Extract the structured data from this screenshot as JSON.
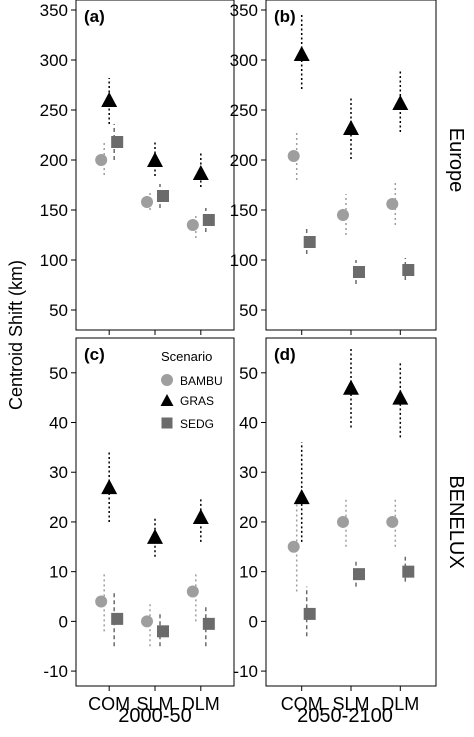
{
  "figure": {
    "ylabel": "Centroid Shift (km)",
    "row_labels": [
      "Europe",
      "BENELUX"
    ],
    "col_labels": [
      "2000-50",
      "2050-2100"
    ],
    "legend_title": "Scenario",
    "categories": [
      "COM",
      "SLM",
      "DLM"
    ],
    "series": [
      {
        "name": "BAMBU",
        "marker": "circle",
        "color": "#9e9e9e",
        "err_style": "dash-dot"
      },
      {
        "name": "GRAS",
        "marker": "triangle",
        "color": "#000000",
        "err_style": "dotted"
      },
      {
        "name": "SEDG",
        "marker": "square",
        "color": "#6b6b6b",
        "err_style": "dashed"
      }
    ]
  },
  "chart_data": [
    {
      "type": "scatter",
      "panel": "(a)",
      "row": "Europe",
      "column": "2000-50",
      "categories": [
        "COM",
        "SLM",
        "DLM"
      ],
      "ylim": [
        30,
        360
      ],
      "yticks": [
        50,
        100,
        150,
        200,
        250,
        300,
        350
      ],
      "series": [
        {
          "name": "BAMBU",
          "values": [
            200,
            158,
            135
          ],
          "lower": [
            185,
            150,
            122
          ],
          "upper": [
            220,
            168,
            145
          ]
        },
        {
          "name": "GRAS",
          "values": [
            260,
            200,
            187
          ],
          "lower": [
            236,
            184,
            173
          ],
          "upper": [
            282,
            218,
            207
          ]
        },
        {
          "name": "SEDG",
          "values": [
            218,
            164,
            140
          ],
          "lower": [
            200,
            152,
            128
          ],
          "upper": [
            236,
            176,
            152
          ]
        }
      ]
    },
    {
      "type": "scatter",
      "panel": "(b)",
      "row": "Europe",
      "column": "2050-2100",
      "categories": [
        "COM",
        "SLM",
        "DLM"
      ],
      "ylim": [
        30,
        360
      ],
      "yticks": [
        50,
        100,
        150,
        200,
        250,
        300,
        350
      ],
      "series": [
        {
          "name": "BAMBU",
          "values": [
            204,
            145,
            156
          ],
          "lower": [
            180,
            125,
            135
          ],
          "upper": [
            228,
            166,
            178
          ]
        },
        {
          "name": "GRAS",
          "values": [
            306,
            232,
            257
          ],
          "lower": [
            271,
            201,
            228
          ],
          "upper": [
            345,
            262,
            289
          ]
        },
        {
          "name": "SEDG",
          "values": [
            118,
            88,
            90
          ],
          "lower": [
            106,
            76,
            80
          ],
          "upper": [
            132,
            100,
            102
          ]
        }
      ]
    },
    {
      "type": "scatter",
      "panel": "(c)",
      "row": "BENELUX",
      "column": "2000-50",
      "categories": [
        "COM",
        "SLM",
        "DLM"
      ],
      "ylim": [
        -13,
        57
      ],
      "yticks": [
        -10,
        0,
        10,
        20,
        30,
        40,
        50
      ],
      "series": [
        {
          "name": "BAMBU",
          "values": [
            4,
            0,
            6
          ],
          "lower": [
            -2,
            -5,
            0
          ],
          "upper": [
            10,
            4,
            10
          ]
        },
        {
          "name": "GRAS",
          "values": [
            27,
            17,
            21
          ],
          "lower": [
            20,
            13,
            16
          ],
          "upper": [
            34,
            21,
            25
          ]
        },
        {
          "name": "SEDG",
          "values": [
            0.5,
            -2,
            -0.5
          ],
          "lower": [
            -5,
            -5,
            -5
          ],
          "upper": [
            6,
            2,
            3
          ]
        }
      ]
    },
    {
      "type": "scatter",
      "panel": "(d)",
      "row": "BENELUX",
      "column": "2050-2100",
      "categories": [
        "COM",
        "SLM",
        "DLM"
      ],
      "ylim": [
        -13,
        57
      ],
      "yticks": [
        -10,
        0,
        10,
        20,
        30,
        40,
        50
      ],
      "series": [
        {
          "name": "BAMBU",
          "values": [
            15,
            20,
            20
          ],
          "lower": [
            6,
            15,
            15
          ],
          "upper": [
            25,
            25,
            25
          ]
        },
        {
          "name": "GRAS",
          "values": [
            25,
            47,
            45
          ],
          "lower": [
            16,
            39,
            37
          ],
          "upper": [
            36,
            55,
            52
          ]
        },
        {
          "name": "SEDG",
          "values": [
            1.5,
            9.5,
            10
          ],
          "lower": [
            -3,
            7,
            8
          ],
          "upper": [
            7,
            12,
            13
          ]
        }
      ]
    }
  ]
}
